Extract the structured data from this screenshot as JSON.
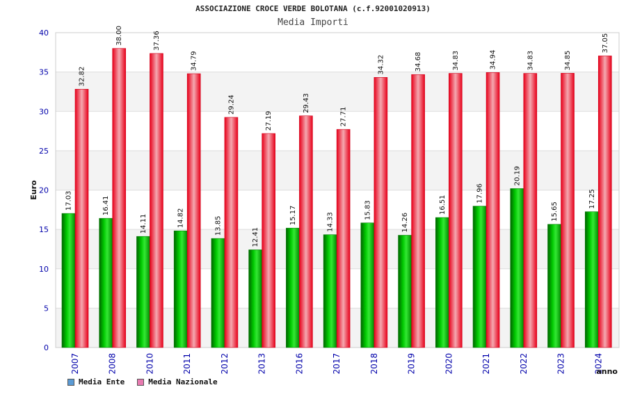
{
  "chart_data": {
    "type": "bar",
    "title": "ASSOCIAZIONE CROCE VERDE BOLOTANA (c.f.92001020913)",
    "subtitle": "Media Importi",
    "xlabel": "anno",
    "ylabel": "Euro",
    "ylim": [
      0,
      40
    ],
    "yticks": [
      0,
      5,
      10,
      15,
      20,
      25,
      30,
      35,
      40
    ],
    "categories": [
      "2007",
      "2008",
      "2010",
      "2011",
      "2012",
      "2013",
      "2016",
      "2017",
      "2018",
      "2019",
      "2020",
      "2021",
      "2022",
      "2023",
      "2024"
    ],
    "series": [
      {
        "name": "Media Ente",
        "values": [
          17.03,
          16.41,
          14.11,
          14.82,
          13.85,
          12.41,
          15.17,
          14.33,
          15.83,
          14.26,
          16.51,
          17.96,
          20.19,
          15.65,
          17.25
        ],
        "labels": [
          "17.03",
          "16.41",
          "14.11",
          "14.82",
          "13.85",
          "12.41",
          "15.17",
          "14.33",
          "15.83",
          "14.26",
          "16.51",
          "17.96",
          "20.19",
          "15.65",
          "17.25"
        ],
        "color": "#00b000"
      },
      {
        "name": "Media Nazionale",
        "values": [
          32.82,
          38.0,
          37.36,
          34.79,
          29.24,
          27.19,
          29.43,
          27.71,
          34.32,
          34.68,
          34.83,
          34.94,
          34.83,
          34.85,
          37.05
        ],
        "labels": [
          "32.82",
          "38.00",
          "37.36",
          "34.79",
          "29.24",
          "27.19",
          "29.43",
          "27.71",
          "34.32",
          "34.68",
          "34.83",
          "34.94",
          "34.83",
          "34.85",
          "37.05"
        ],
        "color": "#e8142a"
      }
    ],
    "legend": [
      {
        "label": "Media Ente",
        "color": "#5b9bd5"
      },
      {
        "label": "Media Nazionale",
        "color": "#e87ab0"
      }
    ],
    "legend_position": "bottom-left",
    "grid": true
  }
}
